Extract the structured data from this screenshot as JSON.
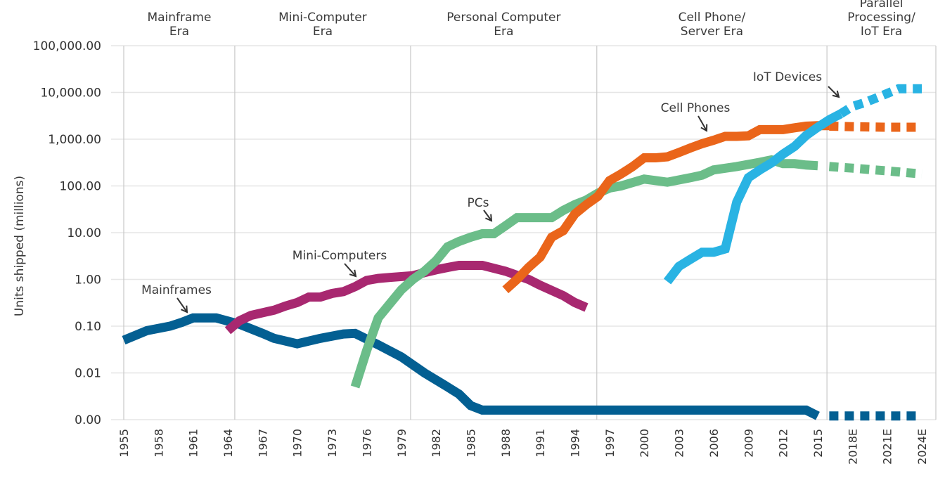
{
  "chart_data": {
    "type": "line",
    "title": "",
    "xlabel": "",
    "ylabel": "Units shipped (millions)",
    "yscale": "log",
    "ylim": [
      0.001,
      100000
    ],
    "y_ticks": [
      {
        "value": 0.001,
        "label": "0.00"
      },
      {
        "value": 0.01,
        "label": "0.01"
      },
      {
        "value": 0.1,
        "label": "0.10"
      },
      {
        "value": 1,
        "label": "1.00"
      },
      {
        "value": 10,
        "label": "10.00"
      },
      {
        "value": 100,
        "label": "100.00"
      },
      {
        "value": 1000,
        "label": "1,000.00"
      },
      {
        "value": 10000,
        "label": "10,000.00"
      },
      {
        "value": 100000,
        "label": "100,000.00"
      }
    ],
    "xlim": [
      1955,
      2024
    ],
    "x_ticks": [
      {
        "value": 1955,
        "label": "1955"
      },
      {
        "value": 1958,
        "label": "1958"
      },
      {
        "value": 1961,
        "label": "1961"
      },
      {
        "value": 1964,
        "label": "1964"
      },
      {
        "value": 1967,
        "label": "1967"
      },
      {
        "value": 1970,
        "label": "1970"
      },
      {
        "value": 1973,
        "label": "1973"
      },
      {
        "value": 1976,
        "label": "1976"
      },
      {
        "value": 1979,
        "label": "1979"
      },
      {
        "value": 1982,
        "label": "1982"
      },
      {
        "value": 1985,
        "label": "1985"
      },
      {
        "value": 1988,
        "label": "1988"
      },
      {
        "value": 1991,
        "label": "1991"
      },
      {
        "value": 1994,
        "label": "1994"
      },
      {
        "value": 1997,
        "label": "1997"
      },
      {
        "value": 2000,
        "label": "2000"
      },
      {
        "value": 2003,
        "label": "2003"
      },
      {
        "value": 2006,
        "label": "2006"
      },
      {
        "value": 2009,
        "label": "2009"
      },
      {
        "value": 2012,
        "label": "2012"
      },
      {
        "value": 2015,
        "label": "2015"
      },
      {
        "value": 2018,
        "label": "2018E"
      },
      {
        "value": 2021,
        "label": "2021E"
      },
      {
        "value": 2024,
        "label": "2024E"
      }
    ],
    "grid": true,
    "legend": "none (inline annotations)",
    "eras": [
      {
        "label_lines": [
          "Mainframe",
          "Era"
        ],
        "start": 1955,
        "end": 1964.6
      },
      {
        "label_lines": [
          "Mini-Computer",
          "Era"
        ],
        "start": 1964.6,
        "end": 1979.8
      },
      {
        "label_lines": [
          "Personal Computer",
          "Era"
        ],
        "start": 1979.8,
        "end": 1995.9
      },
      {
        "label_lines": [
          "Cell Phone/",
          "Server Era"
        ],
        "start": 1995.9,
        "end": 2015.8
      },
      {
        "label_lines": [
          "Parallel",
          "Processing/",
          "IoT Era"
        ],
        "start": 2015.8,
        "end": 2025.5
      }
    ],
    "series": [
      {
        "name": "Mainframes",
        "color": "#035f92",
        "actual": {
          "x": [
            1955,
            1957,
            1959,
            1960,
            1961,
            1963,
            1965,
            1967,
            1968,
            1970,
            1972,
            1974,
            1975,
            1977,
            1979,
            1981,
            1983,
            1984,
            1985,
            1986,
            1988,
            1995,
            2000,
            2005,
            2010,
            2014,
            2015
          ],
          "y": [
            0.05,
            0.08,
            0.1,
            0.12,
            0.15,
            0.15,
            0.11,
            0.07,
            0.055,
            0.042,
            0.055,
            0.068,
            0.07,
            0.04,
            0.022,
            0.01,
            0.005,
            0.0035,
            0.002,
            0.0016,
            0.0016,
            0.0016,
            0.0016,
            0.0016,
            0.0016,
            0.0016,
            0.0012
          ]
        },
        "estimate": {
          "x": [
            2016,
            2018,
            2021,
            2024
          ],
          "y": [
            0.0012,
            0.0012,
            0.0012,
            0.0012
          ]
        }
      },
      {
        "name": "Mini-Computers",
        "color": "#a82870",
        "actual": {
          "x": [
            1964,
            1965,
            1966,
            1968,
            1969,
            1970,
            1971,
            1972,
            1973,
            1974,
            1975,
            1976,
            1977,
            1978,
            1980,
            1981,
            1982,
            1983,
            1984,
            1986,
            1988,
            1990,
            1991,
            1993,
            1994,
            1995
          ],
          "y": [
            0.08,
            0.13,
            0.17,
            0.22,
            0.27,
            0.32,
            0.42,
            0.42,
            0.5,
            0.55,
            0.7,
            0.95,
            1.05,
            1.1,
            1.2,
            1.4,
            1.6,
            1.8,
            2.0,
            2.0,
            1.5,
            1.0,
            0.75,
            0.45,
            0.32,
            0.25
          ]
        }
      },
      {
        "name": "PCs",
        "color": "#6bbd89",
        "actual": {
          "x": [
            1975,
            1976,
            1977,
            1978,
            1979,
            1980,
            1981,
            1982,
            1983,
            1984,
            1985,
            1986,
            1987,
            1988,
            1989,
            1990,
            1991,
            1992,
            1993,
            1994,
            1995,
            1996,
            1997,
            1998,
            2000,
            2001,
            2002,
            2004,
            2005,
            2006,
            2008,
            2010,
            2011,
            2012,
            2013,
            2014,
            2015
          ],
          "y": [
            0.005,
            0.03,
            0.15,
            0.3,
            0.6,
            1.0,
            1.5,
            2.5,
            5.0,
            6.5,
            8.0,
            9.5,
            9.5,
            14,
            21,
            21,
            21,
            21,
            30,
            40,
            50,
            70,
            90,
            100,
            140,
            130,
            120,
            150,
            170,
            220,
            260,
            320,
            360,
            300,
            300,
            280,
            270
          ]
        },
        "estimate": {
          "x": [
            2016,
            2018,
            2021,
            2024
          ],
          "y": [
            260,
            240,
            210,
            180
          ]
        }
      },
      {
        "name": "Cell Phones",
        "color": "#ea651a",
        "actual": {
          "x": [
            1988,
            1989,
            1990,
            1991,
            1992,
            1993,
            1994,
            1995,
            1996,
            1997,
            1998,
            1999,
            2000,
            2001,
            2002,
            2003,
            2004,
            2005,
            2006,
            2007,
            2008,
            2009,
            2010,
            2011,
            2012,
            2013,
            2014,
            2015,
            2016
          ],
          "y": [
            0.6,
            1.0,
            1.8,
            3.0,
            8.0,
            11,
            25,
            40,
            60,
            130,
            180,
            260,
            400,
            400,
            420,
            520,
            650,
            800,
            950,
            1150,
            1150,
            1180,
            1600,
            1600,
            1600,
            1750,
            1900,
            1950,
            1950
          ]
        },
        "estimate": {
          "x": [
            2016,
            2018,
            2021,
            2024
          ],
          "y": [
            1900,
            1850,
            1800,
            1800
          ]
        }
      },
      {
        "name": "IoT Devices",
        "color": "#29b3e3",
        "actual": {
          "x": [
            2002,
            2003,
            2004,
            2005,
            2006,
            2007,
            2008,
            2009,
            2010,
            2011,
            2012,
            2013,
            2014,
            2015,
            2016,
            2017
          ],
          "y": [
            0.9,
            1.9,
            2.7,
            3.8,
            3.8,
            4.5,
            45,
            150,
            220,
            310,
            480,
            700,
            1200,
            1800,
            2600,
            3500
          ]
        },
        "estimate": {
          "x": [
            2017,
            2018,
            2019,
            2020,
            2021,
            2022,
            2023,
            2024
          ],
          "y": [
            3500,
            5000,
            6000,
            7500,
            9500,
            12000,
            12000,
            12000
          ]
        }
      }
    ],
    "annotations": [
      {
        "text": "Mainframes",
        "series": "Mainframes",
        "points_to_year": 1961
      },
      {
        "text": "Mini-Computers",
        "series": "Mini-Computers",
        "points_to_year": 1976
      },
      {
        "text": "PCs",
        "series": "PCs",
        "points_to_year": 1986
      },
      {
        "text": "Cell Phones",
        "series": "Cell Phones",
        "points_to_year": 2006
      },
      {
        "text": "IoT Devices",
        "series": "IoT Devices",
        "points_to_year": 2016
      }
    ]
  }
}
